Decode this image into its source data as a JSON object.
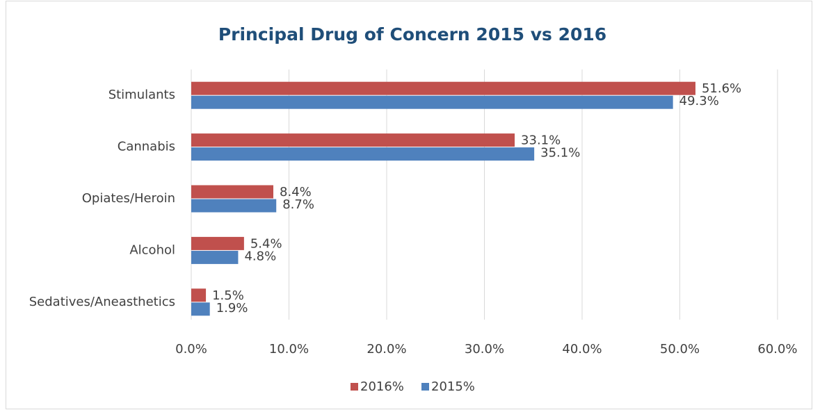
{
  "chart_data": {
    "type": "hbar",
    "title": "Principal Drug of Concern 2015 vs 2016",
    "categories": [
      "Stimulants",
      "Cannabis",
      "Opiates/Heroin",
      "Alcohol",
      "Sedatives/Aneasthetics"
    ],
    "series": [
      {
        "name": "2016%",
        "color": "#c0504d",
        "values": [
          51.6,
          33.1,
          8.4,
          5.4,
          1.5
        ],
        "value_labels": [
          "51.6%",
          "33.1%",
          "8.4%",
          "5.4%",
          "1.5%"
        ]
      },
      {
        "name": "2015%",
        "color": "#4f81bd",
        "values": [
          49.3,
          35.1,
          8.7,
          4.8,
          1.9
        ],
        "value_labels": [
          "49.3%",
          "35.1%",
          "8.7%",
          "4.8%",
          "1.9%"
        ]
      }
    ],
    "xlim": [
      0,
      60
    ],
    "xticks": [
      {
        "value": 0,
        "label": "0.0%"
      },
      {
        "value": 10,
        "label": "10.0%"
      },
      {
        "value": 20,
        "label": "20.0%"
      },
      {
        "value": 30,
        "label": "30.0%"
      },
      {
        "value": 40,
        "label": "40.0%"
      },
      {
        "value": 50,
        "label": "50.0%"
      },
      {
        "value": 60,
        "label": "60.0%"
      }
    ],
    "grid": true,
    "legend": "bottom"
  }
}
